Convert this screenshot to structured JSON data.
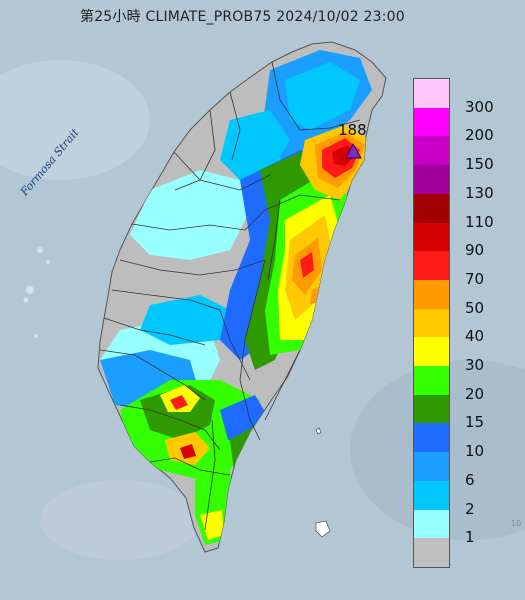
{
  "header": {
    "title": "第25小時  CLIMATE_PROB75 2024/10/02 23:00"
  },
  "map": {
    "strait_label": "Formosa Strait",
    "max_value_label": "188",
    "max_marker_icon": "triangle-marker-icon",
    "edge_label": "10"
  },
  "legend": {
    "labels": [
      "300",
      "200",
      "150",
      "130",
      "110",
      "90",
      "70",
      "50",
      "40",
      "30",
      "20",
      "15",
      "10",
      "6",
      "2",
      "1"
    ],
    "colors": [
      "#ffc6fc",
      "#ff00ff",
      "#c800c8",
      "#a0009a",
      "#a00000",
      "#d60000",
      "#ff1a1a",
      "#ff9a00",
      "#ffc800",
      "#ffff00",
      "#33ff00",
      "#2e9a00",
      "#1f6bff",
      "#1a9eff",
      "#00c8ff",
      "#98ffff",
      "#c0c0c0"
    ]
  }
}
